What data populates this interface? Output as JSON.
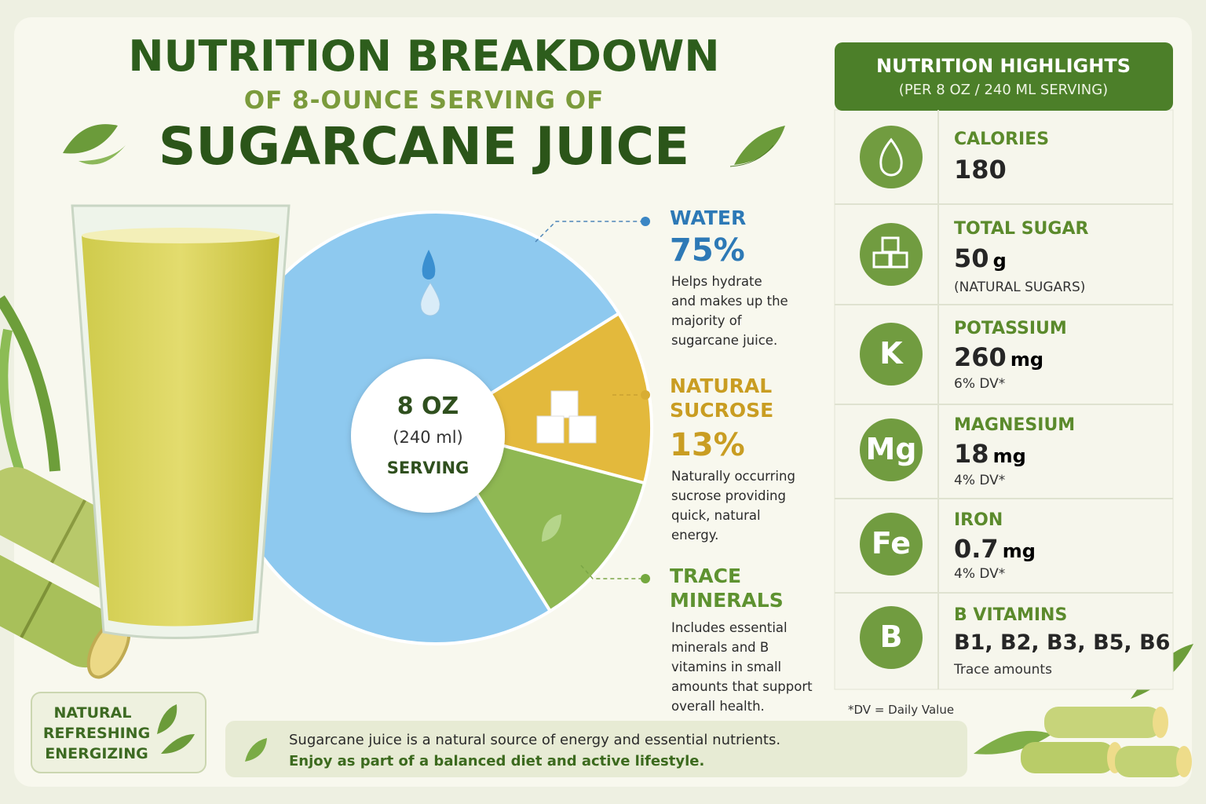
{
  "header": {
    "title": "NUTRITION BREAKDOWN",
    "subtitle": "OF 8-OUNCE SERVING OF",
    "product": "SUGARCANE JUICE"
  },
  "chart_data": {
    "type": "pie",
    "categories": [
      "WATER",
      "NATURAL SUCROSE",
      "TRACE MINERALS"
    ],
    "values": [
      75,
      13,
      12
    ],
    "value_labels": [
      "75%",
      "13%",
      null
    ],
    "colors": [
      "#8ec9ef",
      "#e3b93c",
      "#8fb853"
    ],
    "descriptions": [
      "Helps hydrate and makes up the majority of sugarcane juice.",
      "Naturally occurring sucrose providing quick, natural energy.",
      "Includes essential minerals and B vitamins in small amounts that support overall health."
    ],
    "center_label": [
      "8 OZ",
      "(240 ml)",
      "SERVING"
    ]
  },
  "highlights": {
    "title": "NUTRITION HIGHLIGHTS",
    "subtitle": "(PER 8 OZ / 240 ML SERVING)",
    "items": [
      {
        "label": "CALORIES",
        "value": "180"
      },
      {
        "label": "TOTAL SUGAR",
        "value": "50",
        "unit": "g",
        "note": "(NATURAL SUGARS)"
      },
      {
        "icon": "K",
        "label": "POTASSIUM",
        "value": "260",
        "unit": "mg",
        "note": "6% DV*"
      },
      {
        "icon": "Mg",
        "label": "MAGNESIUM",
        "value": "18",
        "unit": "mg",
        "note": "4% DV*"
      },
      {
        "icon": "Fe",
        "label": "IRON",
        "value": "0.7",
        "unit": "mg",
        "note": "4% DV*"
      },
      {
        "icon": "B",
        "label": "B VITAMINS",
        "value": "B1, B2, B3, B5, B6",
        "note": "Trace amounts"
      }
    ],
    "footnote": "*DV = Daily Value"
  },
  "badge": [
    "NATURAL",
    "REFRESHING",
    "ENERGIZING"
  ],
  "footer": [
    "Sugarcane juice is a natural source of energy and essential nutrients.",
    "Enjoy as part of a balanced diet and active lifestyle."
  ]
}
